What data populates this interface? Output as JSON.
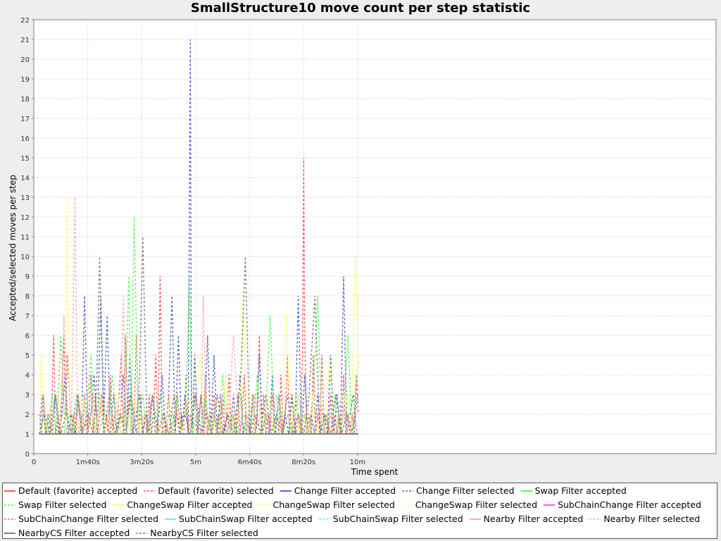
{
  "chart_data": {
    "type": "line",
    "title": "SmallStructure10 move count per step statistic",
    "xlabel": "Time spent",
    "ylabel": "Accepted/selected moves per step",
    "xlim": [
      0,
      630
    ],
    "ylim": [
      0,
      22
    ],
    "x_unit": "seconds",
    "x_ticks": [
      {
        "value": 0,
        "label": "0"
      },
      {
        "value": 100,
        "label": "1m40s"
      },
      {
        "value": 200,
        "label": "3m20s"
      },
      {
        "value": 300,
        "label": "5m"
      },
      {
        "value": 400,
        "label": "6m40s"
      },
      {
        "value": 500,
        "label": "8m20s"
      },
      {
        "value": 600,
        "label": "10m"
      }
    ],
    "y_ticks": [
      0,
      1,
      2,
      3,
      4,
      5,
      6,
      7,
      8,
      9,
      10,
      11,
      12,
      13,
      14,
      15,
      16,
      17,
      18,
      19,
      20,
      21,
      22
    ],
    "grid": true,
    "legend_position": "bottom",
    "series": [
      {
        "name": "Default (favorite) accepted",
        "color": "#ff5555",
        "dash": "solid",
        "x": [
          10,
          601
        ],
        "y": [
          1,
          1
        ]
      },
      {
        "name": "Default (favorite) selected",
        "color": "#ff5555",
        "dash": "dashed",
        "x": [
          10,
          14,
          18,
          22,
          26,
          30,
          34,
          37,
          40,
          44,
          48,
          52,
          56,
          59,
          62,
          66,
          70,
          74,
          78,
          82,
          86,
          90,
          94,
          98,
          102,
          106,
          110,
          114,
          118,
          122,
          126,
          130,
          134,
          138,
          142,
          146,
          150,
          154,
          158,
          162,
          166,
          170,
          174,
          178,
          182,
          186,
          190,
          194,
          198,
          202,
          206,
          210,
          214,
          218,
          222,
          226,
          230,
          234,
          238,
          242,
          246,
          250,
          254,
          258,
          262,
          266,
          270,
          274,
          278,
          282,
          286,
          290,
          294,
          298,
          302,
          306,
          310,
          314,
          318,
          322,
          326,
          330,
          334,
          338,
          342,
          346,
          350,
          354,
          358,
          362,
          366,
          370,
          374,
          378,
          382,
          386,
          390,
          394,
          398,
          402,
          406,
          410,
          414,
          418,
          422,
          426,
          430,
          434,
          438,
          442,
          446,
          450,
          454,
          458,
          462,
          466,
          470,
          474,
          478,
          482,
          486,
          490,
          494,
          498,
          500,
          502,
          506,
          510,
          514,
          518,
          522,
          526,
          530,
          534,
          538,
          542,
          546,
          550,
          554,
          558,
          562,
          566,
          570,
          574,
          578,
          582,
          586,
          590,
          594,
          598,
          601
        ],
        "y": [
          2,
          1,
          3,
          1,
          2,
          1,
          3,
          6,
          1,
          2,
          1,
          3,
          6,
          2,
          5,
          3,
          1,
          2,
          1,
          3,
          2,
          1,
          3,
          1,
          2,
          4,
          1,
          3,
          1,
          2,
          3,
          1,
          2,
          1,
          4,
          1,
          2,
          1,
          3,
          5,
          1,
          6,
          2,
          3,
          1,
          2,
          6,
          1,
          3,
          1,
          2,
          1,
          3,
          1,
          2,
          5,
          1,
          9,
          1,
          2,
          1,
          3,
          1,
          2,
          1,
          3,
          1,
          2,
          1,
          4,
          1,
          2,
          1,
          3,
          1,
          2,
          3,
          1,
          4,
          1,
          2,
          1,
          3,
          1,
          2,
          1,
          3,
          1,
          2,
          4,
          1,
          2,
          1,
          3,
          1,
          2,
          4,
          1,
          2,
          1,
          3,
          1,
          2,
          6,
          1,
          3,
          1,
          2,
          1,
          3,
          1,
          2,
          1,
          4,
          1,
          2,
          5,
          1,
          3,
          2,
          1,
          2,
          1,
          5,
          15,
          6,
          1,
          2,
          1,
          5,
          1,
          2,
          1,
          5,
          1,
          2,
          1,
          3,
          1,
          2,
          1,
          2,
          1,
          4,
          1,
          2,
          1,
          2,
          1,
          4,
          2
        ]
      },
      {
        "name": "Change Filter accepted",
        "color": "#5566cc",
        "dash": "solid",
        "x": [
          10,
          601
        ],
        "y": [
          1,
          1
        ]
      },
      {
        "name": "Change Filter selected",
        "color": "#5566cc",
        "dash": "dashed",
        "x": [
          10,
          16,
          22,
          28,
          34,
          40,
          46,
          52,
          58,
          64,
          70,
          76,
          82,
          88,
          94,
          100,
          106,
          112,
          118,
          124,
          130,
          136,
          142,
          148,
          154,
          160,
          166,
          172,
          178,
          184,
          190,
          196,
          202,
          208,
          214,
          220,
          226,
          232,
          238,
          244,
          250,
          256,
          262,
          268,
          274,
          280,
          286,
          290,
          292,
          294,
          298,
          304,
          310,
          316,
          322,
          328,
          334,
          340,
          346,
          352,
          358,
          364,
          370,
          376,
          382,
          388,
          394,
          400,
          406,
          412,
          418,
          424,
          430,
          436,
          442,
          448,
          454,
          460,
          466,
          472,
          478,
          484,
          490,
          496,
          502,
          508,
          514,
          520,
          526,
          532,
          538,
          544,
          550,
          556,
          562,
          568,
          574,
          580,
          586,
          592,
          598
        ],
        "y": [
          1,
          3,
          1,
          2,
          1,
          3,
          1,
          2,
          4,
          1,
          2,
          1,
          3,
          1,
          8,
          1,
          2,
          4,
          1,
          8,
          2,
          7,
          1,
          3,
          1,
          2,
          4,
          1,
          5,
          1,
          2,
          3,
          1,
          2,
          1,
          3,
          1,
          2,
          4,
          1,
          3,
          8,
          1,
          6,
          1,
          3,
          1,
          21,
          3,
          1,
          5,
          1,
          3,
          1,
          6,
          1,
          5,
          1,
          3,
          1,
          2,
          1,
          3,
          1,
          4,
          1,
          2,
          1,
          3,
          1,
          5,
          1,
          2,
          1,
          4,
          1,
          3,
          1,
          2,
          1,
          3,
          1,
          8,
          1,
          4,
          1,
          2,
          1,
          3,
          1,
          2,
          1,
          5,
          1,
          3,
          1,
          9,
          1,
          2,
          3,
          1
        ]
      },
      {
        "name": "Swap Filter accepted",
        "color": "#55ff55",
        "dash": "solid",
        "x": [
          10,
          601
        ],
        "y": [
          1,
          1
        ]
      },
      {
        "name": "Swap Filter selected",
        "color": "#55ff55",
        "dash": "dashed",
        "x": [
          10,
          18,
          26,
          34,
          42,
          50,
          58,
          66,
          74,
          82,
          90,
          98,
          106,
          114,
          122,
          130,
          138,
          146,
          154,
          162,
          168,
          176,
          180,
          186,
          194,
          202,
          210,
          218,
          226,
          234,
          242,
          250,
          258,
          266,
          274,
          282,
          288,
          294,
          302,
          310,
          318,
          326,
          334,
          342,
          350,
          358,
          366,
          374,
          382,
          390,
          398,
          406,
          414,
          422,
          430,
          438,
          446,
          454,
          462,
          470,
          478,
          486,
          494,
          502,
          510,
          518,
          526,
          534,
          542,
          550,
          558,
          566,
          574,
          582,
          590,
          598
        ],
        "y": [
          1,
          2,
          1,
          3,
          1,
          6,
          1,
          2,
          1,
          3,
          1,
          2,
          5,
          1,
          3,
          1,
          2,
          4,
          1,
          2,
          1,
          9,
          1,
          12,
          1,
          3,
          1,
          2,
          1,
          3,
          1,
          2,
          1,
          3,
          1,
          2,
          9,
          1,
          2,
          1,
          3,
          1,
          2,
          1,
          4,
          1,
          2,
          1,
          3,
          1,
          2,
          1,
          4,
          1,
          2,
          7,
          1,
          3,
          1,
          2,
          1,
          3,
          1,
          2,
          1,
          3,
          8,
          1,
          2,
          1,
          3,
          1,
          2,
          6,
          1,
          4
        ]
      },
      {
        "name": "ChangeSwap Filter accepted",
        "color": "#ffff55",
        "dash": "solid",
        "x": [
          10,
          601
        ],
        "y": [
          1,
          1
        ]
      },
      {
        "name": "ChangeSwap Filter selected",
        "color": "#ffff55",
        "dash": "dashed",
        "x": [
          10,
          14,
          20,
          28,
          36,
          44,
          52,
          58,
          62,
          64,
          68,
          76,
          84,
          92,
          100,
          108,
          116,
          124,
          132,
          140,
          148,
          156,
          164,
          172,
          180,
          188,
          196,
          204,
          212,
          220,
          228,
          236,
          244,
          252,
          260,
          268,
          276,
          284,
          292,
          300,
          308,
          316,
          324,
          332,
          340,
          348,
          356,
          364,
          372,
          380,
          388,
          396,
          404,
          412,
          420,
          428,
          436,
          444,
          452,
          460,
          468,
          476,
          484,
          492,
          500,
          508,
          516,
          524,
          532,
          540,
          548,
          556,
          564,
          572,
          580,
          588,
          596,
          602
        ],
        "y": [
          1,
          5,
          1,
          2,
          1,
          3,
          1,
          2,
          13,
          5,
          1,
          2,
          1,
          3,
          1,
          2,
          1,
          3,
          1,
          2,
          1,
          3,
          1,
          2,
          1,
          3,
          1,
          2,
          1,
          3,
          1,
          2,
          1,
          3,
          1,
          2,
          1,
          3,
          1,
          2,
          5,
          1,
          2,
          1,
          3,
          1,
          4,
          1,
          2,
          1,
          8,
          1,
          3,
          1,
          2,
          1,
          3,
          1,
          2,
          1,
          7,
          1,
          3,
          1,
          2,
          1,
          3,
          1,
          2,
          1,
          5,
          1,
          2,
          1,
          3,
          1,
          10,
          4
        ]
      },
      {
        "name": "ChangeSwap Filter selected",
        "color": "#ffffaa",
        "dash": "dashed",
        "x": [
          10,
          601
        ],
        "y": [
          1,
          1
        ]
      },
      {
        "name": "SubChainChange Filter accepted",
        "color": "#ff55ff",
        "dash": "solid",
        "x": [
          10,
          601
        ],
        "y": [
          1,
          1
        ]
      },
      {
        "name": "SubChainChange Filter selected",
        "color": "#ff55ff",
        "dash": "dashed",
        "x": [
          10,
          601
        ],
        "y": [
          1,
          1
        ]
      },
      {
        "name": "SubChainSwap Filter accepted",
        "color": "#55ffff",
        "dash": "solid",
        "x": [
          10,
          601
        ],
        "y": [
          1,
          1
        ]
      },
      {
        "name": "SubChainSwap Filter selected",
        "color": "#55ffff",
        "dash": "dashed",
        "x": [
          10,
          601
        ],
        "y": [
          1,
          1
        ]
      },
      {
        "name": "Nearby Filter accepted",
        "color": "#ffafaf",
        "dash": "solid",
        "x": [
          10,
          601
        ],
        "y": [
          1,
          1
        ]
      },
      {
        "name": "Nearby Filter selected",
        "color": "#ffafaf",
        "dash": "dashed",
        "x": [
          10,
          20,
          30,
          40,
          50,
          56,
          62,
          70,
          76,
          80,
          84,
          90,
          100,
          110,
          120,
          130,
          140,
          150,
          160,
          166,
          172,
          180,
          190,
          200,
          210,
          220,
          230,
          240,
          250,
          260,
          270,
          280,
          290,
          300,
          310,
          314,
          320,
          330,
          340,
          350,
          360,
          370,
          380,
          390,
          400,
          410,
          420,
          430,
          440,
          450,
          460,
          470,
          480,
          490,
          500,
          510,
          520,
          530,
          540,
          550,
          560,
          570,
          580,
          590,
          600
        ],
        "y": [
          1,
          2,
          1,
          3,
          1,
          7,
          1,
          2,
          13,
          4,
          1,
          2,
          1,
          3,
          1,
          2,
          1,
          3,
          1,
          8,
          1,
          3,
          1,
          2,
          1,
          3,
          1,
          2,
          1,
          3,
          1,
          2,
          1,
          3,
          1,
          8,
          1,
          2,
          1,
          3,
          1,
          6,
          1,
          2,
          1,
          3,
          1,
          2,
          1,
          3,
          1,
          2,
          1,
          3,
          1,
          2,
          1,
          3,
          1,
          2,
          1,
          3,
          1,
          2,
          1
        ]
      },
      {
        "name": "NearbyCS Filter accepted",
        "color": "#808080",
        "dash": "solid",
        "x": [
          10,
          601
        ],
        "y": [
          1,
          1
        ]
      },
      {
        "name": "NearbyCS Filter selected",
        "color": "#808080",
        "dash": "dashed",
        "x": [
          10,
          20,
          30,
          40,
          50,
          60,
          70,
          80,
          90,
          100,
          110,
          116,
          122,
          130,
          140,
          150,
          160,
          170,
          180,
          190,
          196,
          202,
          210,
          220,
          230,
          240,
          250,
          260,
          270,
          280,
          290,
          300,
          310,
          320,
          330,
          340,
          350,
          360,
          370,
          384,
          392,
          400,
          410,
          420,
          430,
          440,
          450,
          460,
          470,
          480,
          490,
          500,
          510,
          521,
          530,
          540,
          550,
          560,
          570,
          580,
          590,
          600
        ],
        "y": [
          1,
          2,
          1,
          3,
          1,
          2,
          1,
          3,
          1,
          2,
          1,
          3,
          10,
          1,
          3,
          1,
          2,
          1,
          3,
          1,
          4,
          11,
          1,
          3,
          1,
          2,
          1,
          3,
          1,
          2,
          1,
          3,
          1,
          2,
          1,
          3,
          1,
          2,
          1,
          4,
          10,
          1,
          2,
          1,
          3,
          1,
          2,
          1,
          3,
          1,
          2,
          1,
          3,
          8,
          1,
          2,
          1,
          3,
          1,
          2,
          1,
          3
        ]
      }
    ]
  }
}
